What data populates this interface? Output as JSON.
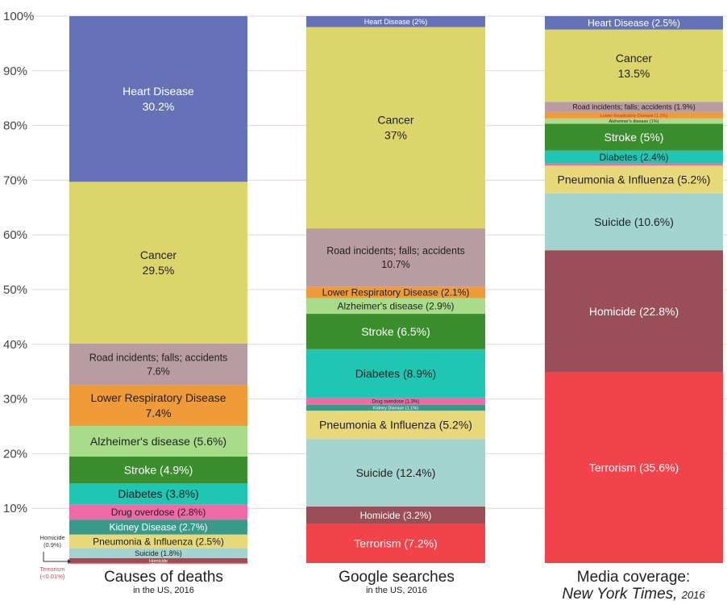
{
  "chart_data": {
    "type": "bar",
    "stacked": true,
    "ylim": [
      0,
      100
    ],
    "grid": true,
    "y_ticks": [
      "10%",
      "20%",
      "30%",
      "40%",
      "50%",
      "60%",
      "70%",
      "80%",
      "90%",
      "100%"
    ],
    "columns": [
      {
        "title": "Causes of deaths",
        "subtitle": "in the US, 2016",
        "segments": [
          {
            "label": "Terrorism",
            "value": 0.01,
            "color": "#f2434b"
          },
          {
            "label": "Homicide",
            "value": 0.9,
            "color": "#9a4f58"
          },
          {
            "label": "Suicide (1.8%)",
            "value": 1.8,
            "color": "#a4d4cf"
          },
          {
            "label": "Pneumonia & Influenza (2.5%)",
            "value": 2.5,
            "color": "#e8d87a"
          },
          {
            "label": "Kidney Disease (2.7%)",
            "value": 2.7,
            "color": "#3a9a8a"
          },
          {
            "label": "Drug overdose (2.8%)",
            "value": 2.8,
            "color": "#ef6aa6"
          },
          {
            "label": "Diabetes (3.8%)",
            "value": 3.8,
            "color": "#1fc6b4"
          },
          {
            "label": "Stroke (4.9%)",
            "value": 4.9,
            "color": "#3b8e2e"
          },
          {
            "label": "Alzheimer's disease (5.6%)",
            "value": 5.6,
            "color": "#a8dc8a"
          },
          {
            "label": "Lower Respiratory Disease|7.4%",
            "value": 7.4,
            "color": "#ef9b3a"
          },
          {
            "label": "Road incidents; falls; accidents|7.6%",
            "value": 7.6,
            "color": "#b99ba2"
          },
          {
            "label": "Cancer|29.5%",
            "value": 29.5,
            "color": "#dcd56a"
          },
          {
            "label": "Heart Disease|30.2%",
            "value": 30.2,
            "color": "#6672b8"
          }
        ]
      },
      {
        "title": "Google searches",
        "subtitle": "in the US, 2016",
        "segments": [
          {
            "label": "Terrorism (7.2%)",
            "value": 7.2,
            "color": "#f2434b"
          },
          {
            "label": "Homicide (3.2%)",
            "value": 3.2,
            "color": "#9a4f58"
          },
          {
            "label": "Suicide (12.4%)",
            "value": 12.4,
            "color": "#a4d4cf"
          },
          {
            "label": "Pneumonia & Influenza (5.2%)",
            "value": 5.2,
            "color": "#e8d87a"
          },
          {
            "label": "Kidney Disease (1.1%)",
            "value": 1.1,
            "color": "#3a9a8a"
          },
          {
            "label": "Drug overdose (1.3%)",
            "value": 1.3,
            "color": "#ef6aa6"
          },
          {
            "label": "Diabetes (8.9%)",
            "value": 8.9,
            "color": "#1fc6b4"
          },
          {
            "label": "Stroke (6.5%)",
            "value": 6.5,
            "color": "#3b8e2e"
          },
          {
            "label": "Alzheimer's disease (2.9%)",
            "value": 2.9,
            "color": "#a8dc8a"
          },
          {
            "label": "Lower Respiratory Disease (2.1%)",
            "value": 2.1,
            "color": "#ef9b3a"
          },
          {
            "label": "Road incidents; falls; accidents|10.7%",
            "value": 10.7,
            "color": "#b99ba2"
          },
          {
            "label": "Cancer|37%",
            "value": 37,
            "color": "#dcd56a"
          },
          {
            "label": "Heart Disease (2%)",
            "value": 2,
            "color": "#6672b8"
          }
        ]
      },
      {
        "title": "Media coverage:",
        "subtitle": "New York Times,",
        "subtitle_year": "2016",
        "segments": [
          {
            "label": "Terrorism (35.6%)",
            "value": 35.6,
            "color": "#f2434b"
          },
          {
            "label": "Homicide (22.8%)",
            "value": 22.8,
            "color": "#9a4f58"
          },
          {
            "label": "Suicide (10.6%)",
            "value": 10.6,
            "color": "#a4d4cf"
          },
          {
            "label": "Pneumonia & Influenza (5.2%)",
            "value": 5.2,
            "color": "#e8d87a"
          },
          {
            "label": "",
            "value": 0.4,
            "color": "#ef6aa6"
          },
          {
            "label": "Diabetes (2.4%)",
            "value": 2.4,
            "color": "#1fc6b4"
          },
          {
            "label": "Stroke (5%)",
            "value": 5,
            "color": "#3b8e2e"
          },
          {
            "label": "Alzheimer's disease (1%)",
            "value": 1,
            "color": "#a8dc8a"
          },
          {
            "label": "Lower Respiratory Disease (1.2%)",
            "value": 1.2,
            "color": "#ef9b3a"
          },
          {
            "label": "Road incidents; falls; accidents (1.9%)",
            "value": 1.9,
            "color": "#b99ba2"
          },
          {
            "label": "Cancer|13.5%",
            "value": 13.5,
            "color": "#dcd56a"
          },
          {
            "label": "Heart Disease (2.5%)",
            "value": 2.5,
            "color": "#6672b8"
          }
        ]
      }
    ],
    "annotations": {
      "homicide": "Homicide\n(0.9%)",
      "terrorism": "Terrorism\n(<0.01%)"
    }
  }
}
